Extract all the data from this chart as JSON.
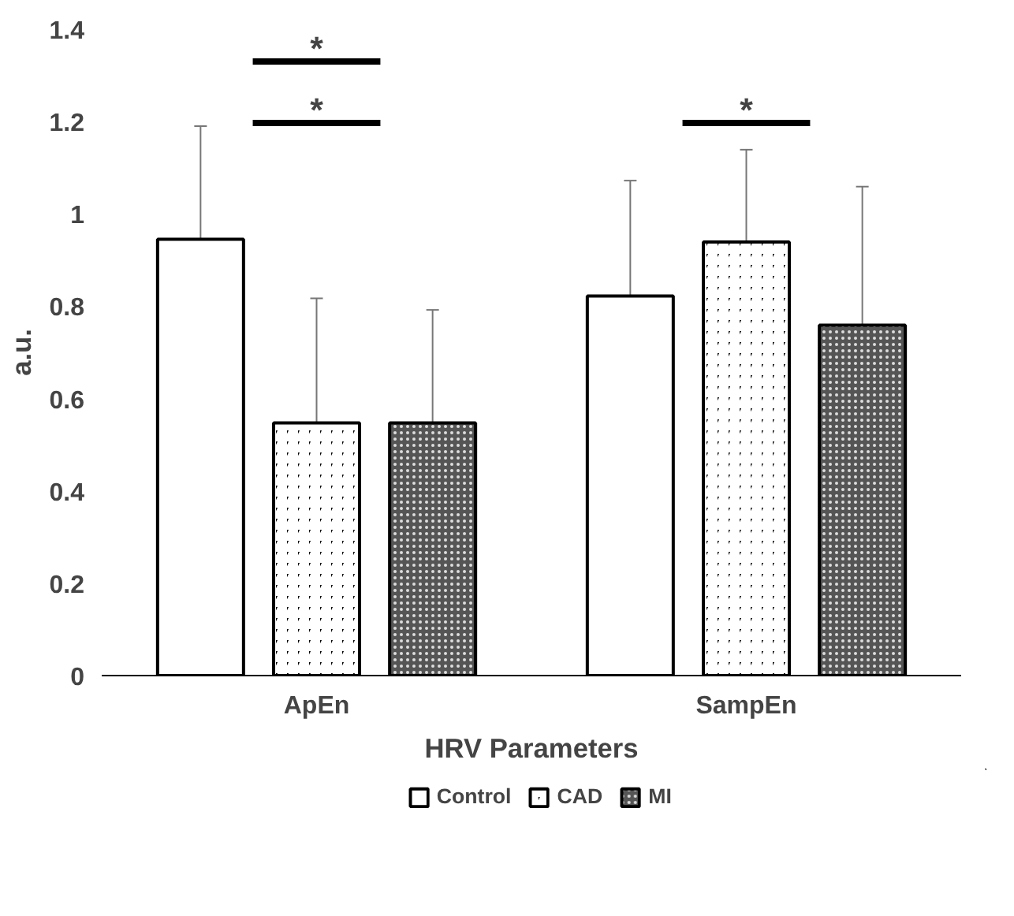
{
  "chart_data": {
    "type": "bar",
    "xlabel": "HRV Parameters",
    "ylabel": "a.u.",
    "categories": [
      "ApEn",
      "SampEn"
    ],
    "series": [
      {
        "name": "Control",
        "color": "#ffffff",
        "values": [
          0.945,
          0.822
        ],
        "errors": [
          0.245,
          0.25
        ]
      },
      {
        "name": "CAD",
        "color": "#000000",
        "values": [
          0.547,
          0.939
        ],
        "errors": [
          0.27,
          0.2
        ]
      },
      {
        "name": "MI",
        "color": "#555555",
        "values": [
          0.547,
          0.759
        ],
        "errors": [
          0.245,
          0.3
        ]
      }
    ],
    "ylim": [
      0,
      1.4
    ],
    "yticks": [
      0,
      0.2,
      0.4,
      0.6,
      0.8,
      1,
      1.2,
      1.4
    ],
    "grid": false,
    "legend": "bottom",
    "annotations": [
      "*",
      "*",
      "*"
    ]
  }
}
